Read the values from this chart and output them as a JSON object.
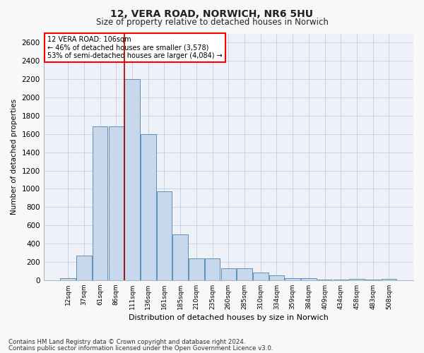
{
  "title_line1": "12, VERA ROAD, NORWICH, NR6 5HU",
  "title_line2": "Size of property relative to detached houses in Norwich",
  "xlabel": "Distribution of detached houses by size in Norwich",
  "ylabel": "Number of detached properties",
  "footnote1": "Contains HM Land Registry data © Crown copyright and database right 2024.",
  "footnote2": "Contains public sector information licensed under the Open Government Licence v3.0.",
  "annotation_line1": "12 VERA ROAD: 106sqm",
  "annotation_line2": "← 46% of detached houses are smaller (3,578)",
  "annotation_line3": "53% of semi-detached houses are larger (4,084) →",
  "bar_color": "#c8d8ec",
  "bar_edge_color": "#6090b8",
  "vline_color": "#aa0000",
  "vline_x": 3.5,
  "categories": [
    "12sqm",
    "37sqm",
    "61sqm",
    "86sqm",
    "111sqm",
    "136sqm",
    "161sqm",
    "185sqm",
    "210sqm",
    "235sqm",
    "260sqm",
    "285sqm",
    "310sqm",
    "334sqm",
    "359sqm",
    "384sqm",
    "409sqm",
    "434sqm",
    "458sqm",
    "483sqm",
    "508sqm"
  ],
  "values": [
    20,
    270,
    1680,
    1680,
    2200,
    1600,
    975,
    500,
    240,
    240,
    130,
    130,
    80,
    50,
    25,
    20,
    10,
    5,
    15,
    5,
    15
  ],
  "ylim": [
    0,
    2700
  ],
  "yticks": [
    0,
    200,
    400,
    600,
    800,
    1000,
    1200,
    1400,
    1600,
    1800,
    2000,
    2200,
    2400,
    2600
  ],
  "grid_color": "#c8d4e4",
  "background_color": "#eef2f8",
  "fig_bg_color": "#f8f8f8"
}
